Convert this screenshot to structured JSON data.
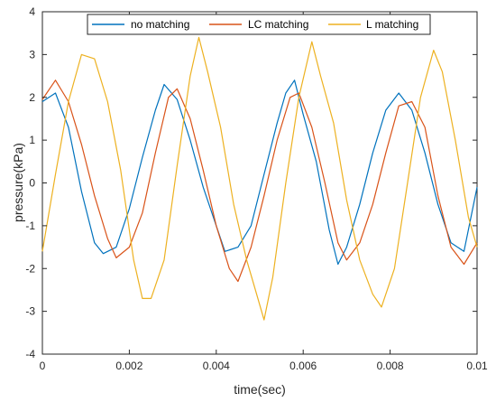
{
  "chart_data": {
    "type": "line",
    "xlabel": "time(sec)",
    "ylabel": "pressure(kPa)",
    "xlim": [
      0,
      0.01
    ],
    "ylim": [
      -4,
      4
    ],
    "x_ticks": [
      "0",
      "0.002",
      "0.004",
      "0.006",
      "0.008",
      "0.01"
    ],
    "y_ticks": [
      "4",
      "3",
      "2",
      "1",
      "0",
      "-1",
      "-2",
      "-3",
      "-4"
    ],
    "grid": false,
    "legend_position": "top",
    "series": [
      {
        "name": "no matching",
        "color": "#0072BD",
        "points": [
          [
            0,
            1.9
          ],
          [
            0.0003,
            2.1
          ],
          [
            0.0006,
            1.3
          ],
          [
            0.0009,
            -0.2
          ],
          [
            0.0012,
            -1.4
          ],
          [
            0.0014,
            -1.65
          ],
          [
            0.0017,
            -1.5
          ],
          [
            0.002,
            -0.6
          ],
          [
            0.0023,
            0.6
          ],
          [
            0.0026,
            1.7
          ],
          [
            0.0028,
            2.3
          ],
          [
            0.0031,
            1.95
          ],
          [
            0.0034,
            1.0
          ],
          [
            0.0037,
            -0.1
          ],
          [
            0.004,
            -1.0
          ],
          [
            0.0042,
            -1.6
          ],
          [
            0.0045,
            -1.5
          ],
          [
            0.0048,
            -1.0
          ],
          [
            0.0051,
            0.2
          ],
          [
            0.0054,
            1.4
          ],
          [
            0.0056,
            2.1
          ],
          [
            0.0058,
            2.4
          ],
          [
            0.006,
            1.6
          ],
          [
            0.0063,
            0.5
          ],
          [
            0.0066,
            -1.1
          ],
          [
            0.0068,
            -1.9
          ],
          [
            0.007,
            -1.5
          ],
          [
            0.0073,
            -0.5
          ],
          [
            0.0076,
            0.7
          ],
          [
            0.0079,
            1.7
          ],
          [
            0.0082,
            2.1
          ],
          [
            0.0085,
            1.7
          ],
          [
            0.0088,
            0.7
          ],
          [
            0.0091,
            -0.5
          ],
          [
            0.0094,
            -1.4
          ],
          [
            0.0097,
            -1.6
          ],
          [
            0.01,
            -0.1
          ]
        ]
      },
      {
        "name": "LC matching",
        "color": "#D95319",
        "points": [
          [
            0,
            1.95
          ],
          [
            0.0003,
            2.4
          ],
          [
            0.0006,
            1.9
          ],
          [
            0.0009,
            0.9
          ],
          [
            0.0012,
            -0.3
          ],
          [
            0.0015,
            -1.3
          ],
          [
            0.0017,
            -1.75
          ],
          [
            0.002,
            -1.5
          ],
          [
            0.0023,
            -0.7
          ],
          [
            0.0026,
            0.7
          ],
          [
            0.0029,
            2.0
          ],
          [
            0.0031,
            2.2
          ],
          [
            0.0034,
            1.5
          ],
          [
            0.0037,
            0.3
          ],
          [
            0.004,
            -1.0
          ],
          [
            0.0043,
            -2.0
          ],
          [
            0.0045,
            -2.3
          ],
          [
            0.0048,
            -1.5
          ],
          [
            0.0051,
            -0.3
          ],
          [
            0.0054,
            1.0
          ],
          [
            0.0057,
            2.0
          ],
          [
            0.0059,
            2.1
          ],
          [
            0.0062,
            1.3
          ],
          [
            0.0065,
            0.0
          ],
          [
            0.0068,
            -1.4
          ],
          [
            0.007,
            -1.8
          ],
          [
            0.0073,
            -1.4
          ],
          [
            0.0076,
            -0.5
          ],
          [
            0.0079,
            0.7
          ],
          [
            0.0082,
            1.8
          ],
          [
            0.0085,
            1.9
          ],
          [
            0.0088,
            1.3
          ],
          [
            0.0091,
            -0.3
          ],
          [
            0.0094,
            -1.5
          ],
          [
            0.0097,
            -1.9
          ],
          [
            0.01,
            -1.4
          ]
        ]
      },
      {
        "name": "L matching",
        "color": "#EDB120",
        "points": [
          [
            0,
            -1.6
          ],
          [
            0.0003,
            0.2
          ],
          [
            0.0006,
            1.9
          ],
          [
            0.0009,
            3.0
          ],
          [
            0.0012,
            2.9
          ],
          [
            0.0015,
            1.9
          ],
          [
            0.0018,
            0.3
          ],
          [
            0.0021,
            -1.8
          ],
          [
            0.0023,
            -2.7
          ],
          [
            0.0025,
            -2.7
          ],
          [
            0.0028,
            -1.8
          ],
          [
            0.0031,
            0.4
          ],
          [
            0.0034,
            2.5
          ],
          [
            0.0036,
            3.4
          ],
          [
            0.0038,
            2.6
          ],
          [
            0.0041,
            1.3
          ],
          [
            0.0044,
            -0.5
          ],
          [
            0.0047,
            -1.8
          ],
          [
            0.0049,
            -2.5
          ],
          [
            0.0051,
            -3.2
          ],
          [
            0.0053,
            -2.2
          ],
          [
            0.0056,
            0.0
          ],
          [
            0.0059,
            2.0
          ],
          [
            0.0062,
            3.3
          ],
          [
            0.0064,
            2.5
          ],
          [
            0.0067,
            1.4
          ],
          [
            0.007,
            -0.4
          ],
          [
            0.0073,
            -1.8
          ],
          [
            0.0076,
            -2.6
          ],
          [
            0.0078,
            -2.9
          ],
          [
            0.0081,
            -2.0
          ],
          [
            0.0084,
            0.0
          ],
          [
            0.0087,
            2.0
          ],
          [
            0.009,
            3.1
          ],
          [
            0.0092,
            2.6
          ],
          [
            0.0095,
            1.0
          ],
          [
            0.0098,
            -0.8
          ],
          [
            0.01,
            -1.5
          ]
        ]
      }
    ]
  }
}
